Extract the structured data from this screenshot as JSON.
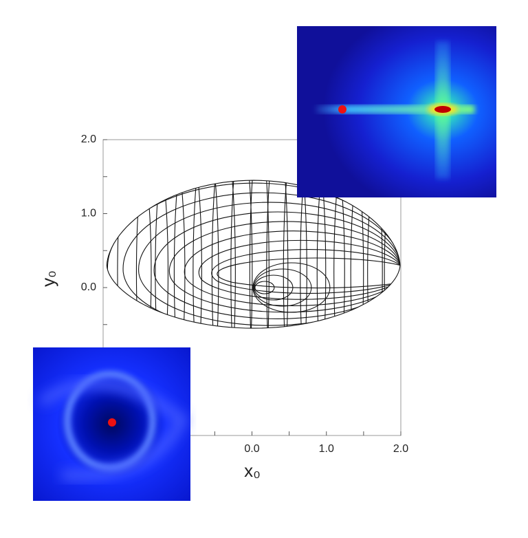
{
  "chart_data": {
    "type": "curve-grid",
    "xlabel": "x₀",
    "ylabel": "y₀",
    "xlim": [
      -2,
      2
    ],
    "ylim": [
      -2,
      2
    ],
    "xticks": [
      {
        "value": 0,
        "label": "0.0"
      },
      {
        "value": 1,
        "label": "1.0"
      },
      {
        "value": 2,
        "label": "2.0"
      }
    ],
    "yticks": [
      {
        "value": 0,
        "label": "0.0"
      },
      {
        "value": 1,
        "label": "1.0"
      },
      {
        "value": 2,
        "label": "2.0"
      }
    ],
    "xminor_ticks": [
      -0.5,
      0.5,
      1.5
    ],
    "yminor_ticks": [
      -0.5,
      0.5,
      1.5
    ]
  }
}
